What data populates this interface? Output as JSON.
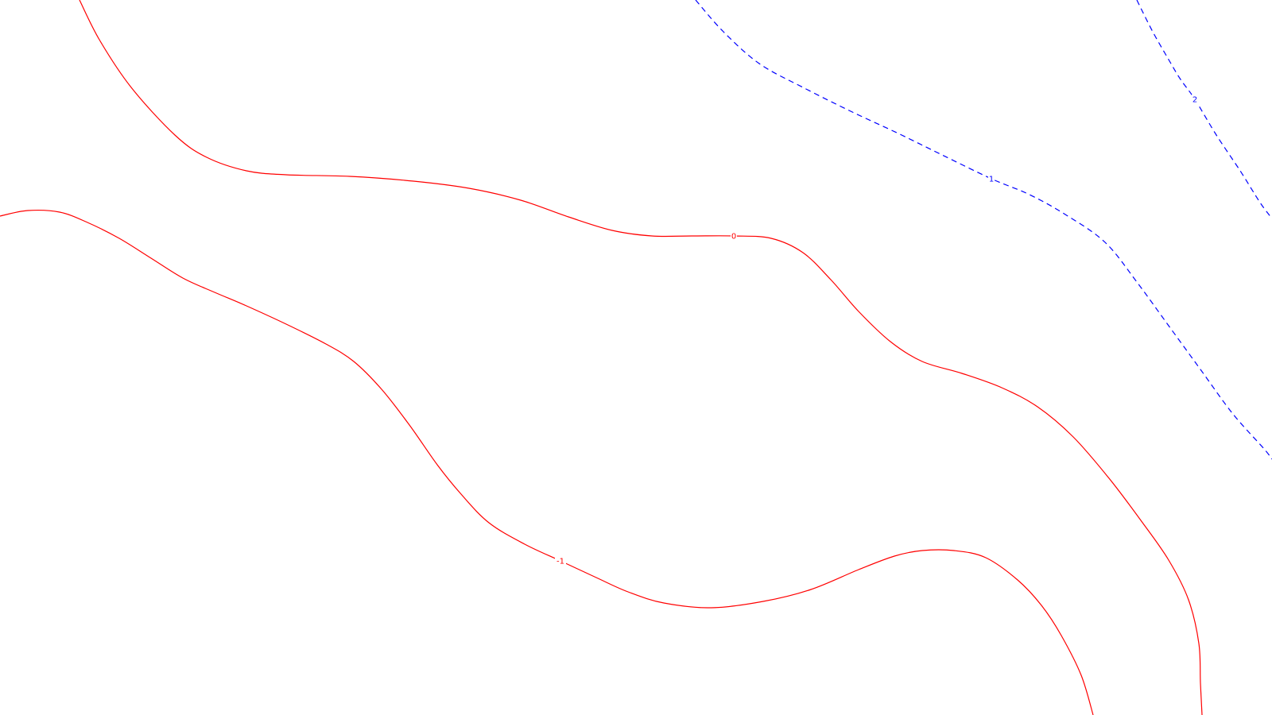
{
  "chart_data": {
    "type": "contour",
    "title": "",
    "xlabel": "",
    "ylabel": "",
    "xlim": [
      0,
      16
    ],
    "ylim": [
      0,
      9
    ],
    "grid": false,
    "colors": {
      "background": "#ffffff",
      "negative_and_zero": "#ff0000",
      "positive": "#0000ff"
    },
    "contours": [
      {
        "level": -1,
        "label": "-1",
        "color": "#ff0000",
        "style": "solid",
        "label_at": [
          7.05,
          1.94
        ],
        "points": [
          [
            0,
            6.28
          ],
          [
            0.35,
            6.35
          ],
          [
            0.75,
            6.33
          ],
          [
            1.1,
            6.2
          ],
          [
            1.5,
            6.0
          ],
          [
            1.9,
            5.75
          ],
          [
            2.3,
            5.5
          ],
          [
            2.7,
            5.32
          ],
          [
            3.1,
            5.15
          ],
          [
            3.6,
            4.92
          ],
          [
            4.1,
            4.67
          ],
          [
            4.45,
            4.45
          ],
          [
            4.8,
            4.1
          ],
          [
            5.15,
            3.65
          ],
          [
            5.5,
            3.15
          ],
          [
            5.8,
            2.78
          ],
          [
            6.15,
            2.42
          ],
          [
            6.6,
            2.15
          ],
          [
            7.05,
            1.94
          ],
          [
            7.5,
            1.73
          ],
          [
            7.9,
            1.55
          ],
          [
            8.35,
            1.41
          ],
          [
            8.95,
            1.35
          ],
          [
            9.6,
            1.43
          ],
          [
            10.2,
            1.58
          ],
          [
            10.8,
            1.83
          ],
          [
            11.25,
            2.0
          ],
          [
            11.6,
            2.07
          ],
          [
            12.0,
            2.07
          ],
          [
            12.4,
            1.98
          ],
          [
            12.8,
            1.7
          ],
          [
            13.1,
            1.38
          ],
          [
            13.35,
            1.0
          ],
          [
            13.6,
            0.5
          ],
          [
            13.75,
            0
          ]
        ]
      },
      {
        "level": 0,
        "label": "0",
        "color": "#ff0000",
        "style": "solid",
        "label_at": [
          9.23,
          6.03
        ],
        "points": [
          [
            1.0,
            9.0
          ],
          [
            1.25,
            8.5
          ],
          [
            1.65,
            7.9
          ],
          [
            2.2,
            7.3
          ],
          [
            2.6,
            7.02
          ],
          [
            3.1,
            6.85
          ],
          [
            3.6,
            6.8
          ],
          [
            4.4,
            6.78
          ],
          [
            5.2,
            6.72
          ],
          [
            5.9,
            6.63
          ],
          [
            6.55,
            6.48
          ],
          [
            7.15,
            6.27
          ],
          [
            7.7,
            6.1
          ],
          [
            8.2,
            6.03
          ],
          [
            8.7,
            6.03
          ],
          [
            9.23,
            6.03
          ],
          [
            9.7,
            6.0
          ],
          [
            10.1,
            5.82
          ],
          [
            10.45,
            5.48
          ],
          [
            10.8,
            5.08
          ],
          [
            11.2,
            4.7
          ],
          [
            11.6,
            4.45
          ],
          [
            12.1,
            4.3
          ],
          [
            12.6,
            4.12
          ],
          [
            13.05,
            3.88
          ],
          [
            13.5,
            3.5
          ],
          [
            13.95,
            2.98
          ],
          [
            14.35,
            2.45
          ],
          [
            14.7,
            1.95
          ],
          [
            14.95,
            1.45
          ],
          [
            15.08,
            0.9
          ],
          [
            15.1,
            0.4
          ],
          [
            15.12,
            0
          ]
        ]
      },
      {
        "level": 1,
        "label": "1",
        "color": "#0000ff",
        "style": "dashed",
        "label_at": [
          12.47,
          6.75
        ],
        "points": [
          [
            8.75,
            9.0
          ],
          [
            9.1,
            8.6
          ],
          [
            9.55,
            8.2
          ],
          [
            10.1,
            7.9
          ],
          [
            10.7,
            7.6
          ],
          [
            11.3,
            7.32
          ],
          [
            11.85,
            7.05
          ],
          [
            12.47,
            6.75
          ],
          [
            12.95,
            6.55
          ],
          [
            13.4,
            6.3
          ],
          [
            13.9,
            5.95
          ],
          [
            14.3,
            5.45
          ],
          [
            14.7,
            4.9
          ],
          [
            15.1,
            4.35
          ],
          [
            15.5,
            3.8
          ],
          [
            15.9,
            3.35
          ],
          [
            16.0,
            3.22
          ]
        ]
      },
      {
        "level": 2,
        "label": "2",
        "color": "#0000ff",
        "style": "dashed",
        "label_at": [
          15.03,
          7.75
        ],
        "points": [
          [
            14.3,
            9.0
          ],
          [
            14.5,
            8.6
          ],
          [
            14.7,
            8.25
          ],
          [
            14.85,
            8.0
          ],
          [
            15.03,
            7.75
          ],
          [
            15.3,
            7.3
          ],
          [
            15.6,
            6.85
          ],
          [
            15.85,
            6.45
          ],
          [
            16.0,
            6.25
          ]
        ]
      }
    ]
  }
}
